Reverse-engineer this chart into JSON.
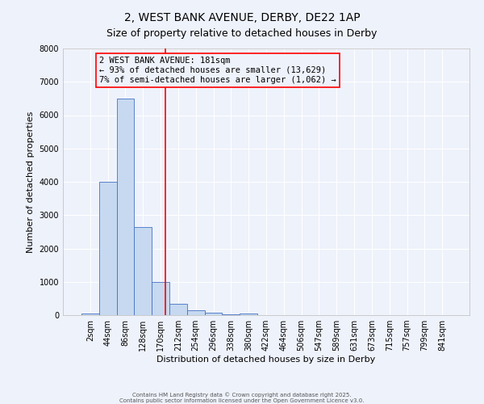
{
  "title": "2, WEST BANK AVENUE, DERBY, DE22 1AP",
  "subtitle": "Size of property relative to detached houses in Derby",
  "xlabel": "Distribution of detached houses by size in Derby",
  "ylabel": "Number of detached properties",
  "bar_labels": [
    "2sqm",
    "44sqm",
    "86sqm",
    "128sqm",
    "170sqm",
    "212sqm",
    "254sqm",
    "296sqm",
    "338sqm",
    "380sqm",
    "422sqm",
    "464sqm",
    "506sqm",
    "547sqm",
    "589sqm",
    "631sqm",
    "673sqm",
    "715sqm",
    "757sqm",
    "799sqm",
    "841sqm"
  ],
  "bar_heights": [
    50,
    4000,
    6500,
    2650,
    1000,
    350,
    150,
    70,
    30,
    50,
    0,
    0,
    0,
    0,
    0,
    0,
    0,
    0,
    0,
    0,
    0
  ],
  "bar_color": "#c6d9f0",
  "bar_edge_color": "#4472c4",
  "ylim": [
    0,
    8000
  ],
  "yticks": [
    0,
    1000,
    2000,
    3000,
    4000,
    5000,
    6000,
    7000,
    8000
  ],
  "red_line_x": 4.26,
  "annotation_text": "2 WEST BANK AVENUE: 181sqm\n← 93% of detached houses are smaller (13,629)\n7% of semi-detached houses are larger (1,062) →",
  "footer_line1": "Contains HM Land Registry data © Crown copyright and database right 2025.",
  "footer_line2": "Contains public sector information licensed under the Open Government Licence v3.0.",
  "background_color": "#eef2fb",
  "grid_color": "#ffffff",
  "title_fontsize": 10,
  "subtitle_fontsize": 9,
  "axis_label_fontsize": 8,
  "tick_fontsize": 7,
  "annotation_fontsize": 7.5,
  "footer_fontsize": 5
}
